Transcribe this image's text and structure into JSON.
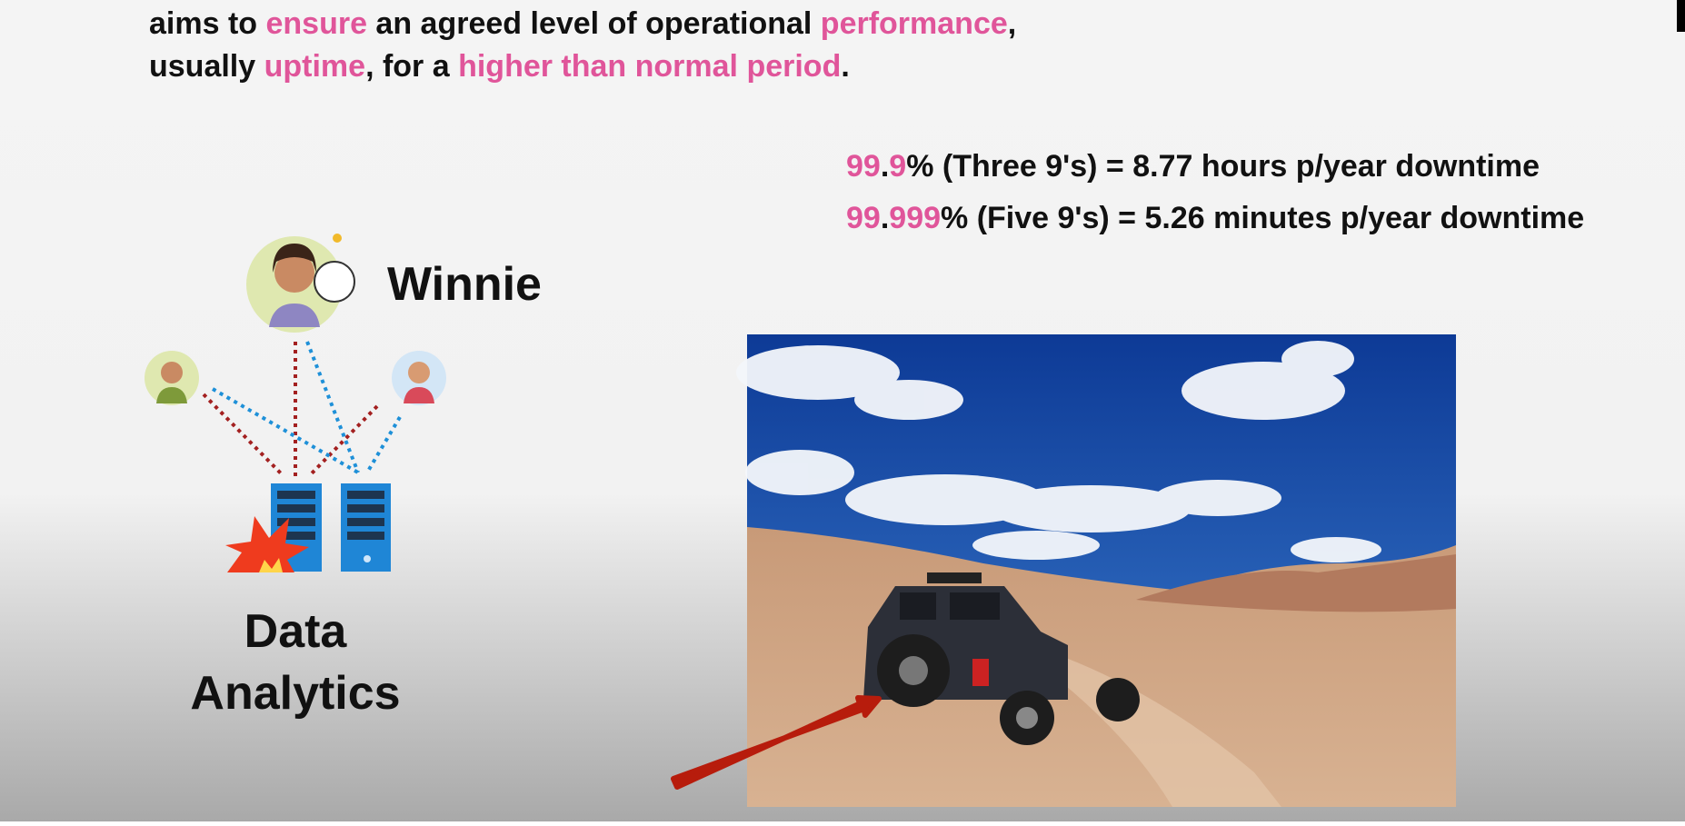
{
  "accent_color": "#e0559a",
  "intro": {
    "lines": [
      [
        {
          "text": "aims to "
        },
        {
          "text": "ensure",
          "highlight": true
        },
        {
          "text": " an agreed level of operational "
        },
        {
          "text": "performance",
          "highlight": true
        },
        {
          "text": ","
        }
      ],
      [
        {
          "text": "usually "
        },
        {
          "text": "uptime",
          "highlight": true
        },
        {
          "text": ", for a "
        },
        {
          "text": "higher than normal period",
          "highlight": true
        },
        {
          "text": "."
        }
      ]
    ]
  },
  "uptime": {
    "lines": [
      [
        {
          "text": "99",
          "highlight": true
        },
        {
          "text": "."
        },
        {
          "text": "9",
          "highlight": true
        },
        {
          "text": "% (Three 9's) = 8.77 hours p/year downtime"
        }
      ],
      [
        {
          "text": "99",
          "highlight": true
        },
        {
          "text": "."
        },
        {
          "text": "999",
          "highlight": true
        },
        {
          "text": "% (Five 9's) = 5.26 minutes p/year downtime"
        }
      ]
    ]
  },
  "person": {
    "name": "Winnie"
  },
  "system": {
    "label_lines": [
      "Data",
      "Analytics"
    ]
  }
}
